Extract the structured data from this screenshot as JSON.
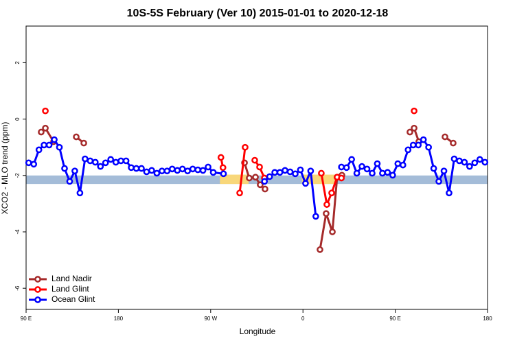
{
  "chart_data": {
    "type": "line",
    "title": "10S-5S February (Ver 10)   2015-01-01 to 2020-12-18",
    "x_label": "Longitude",
    "y_label": "XCO2 - MLO trend (ppm)",
    "xlim": [
      90,
      540
    ],
    "ylim": [
      -6.75,
      3.3
    ],
    "xticks": [
      {
        "value": 90,
        "label": "90 E"
      },
      {
        "value": 180,
        "label": "180"
      },
      {
        "value": 270,
        "label": "90 W"
      },
      {
        "value": 360,
        "label": "0"
      },
      {
        "value": 450,
        "label": "90 E"
      },
      {
        "value": 540,
        "label": "180"
      }
    ],
    "yticks": [
      2,
      0,
      -2,
      -4,
      -6
    ],
    "legend": "bottom-left",
    "band": {
      "ylim": [
        -2.3,
        -2.0
      ],
      "color": "#a4bcd8"
    },
    "highlights": [
      {
        "xlim": [
          279,
          307
        ],
        "ylim": [
          -2.3,
          -1.97
        ],
        "color": "#f8d77a"
      },
      {
        "xlim": [
          359,
          393
        ],
        "ylim": [
          -2.3,
          -1.97
        ],
        "color": "#f8d77a"
      }
    ],
    "series": [
      {
        "name": "Land Nadir",
        "color": "#a52a2a",
        "x": [
          104.7,
          108.8,
          116.8,
          null,
          138.9,
          146.3,
          null,
          303,
          307.6,
          313.7,
          318.3,
          323,
          null,
          376.6,
          382.6,
          388.7,
          393.3,
          398,
          null,
          464.3,
          468.4,
          473,
          null,
          498.5,
          506.5
        ],
        "values": [
          -0.46,
          -0.32,
          -0.8,
          null,
          -0.63,
          -0.85,
          null,
          -1.55,
          -2.09,
          -2.06,
          -2.33,
          -2.48,
          null,
          -4.63,
          -3.35,
          -4.0,
          -2.06,
          -1.99,
          null,
          -0.46,
          -0.32,
          -0.8,
          null,
          -0.63,
          -0.85
        ]
      },
      {
        "name": "Land Glint",
        "color": "#ff0000",
        "x": [
          108.8,
          null,
          280,
          282,
          null,
          298.3,
          303.6,
          null,
          313,
          317.7,
          322.4,
          null,
          377.9,
          383.3,
          388,
          393.3,
          397.5,
          null,
          468.4
        ],
        "values": [
          0.29,
          null,
          -1.36,
          -1.72,
          null,
          -2.62,
          -1.0,
          null,
          -1.46,
          -1.7,
          -2.09,
          null,
          -1.92,
          -3.03,
          -2.62,
          -2.06,
          -2.09,
          null,
          0.29
        ]
      },
      {
        "name": "Ocean Glint",
        "color": "#0000ff",
        "x": [
          92.5,
          97.5,
          102.5,
          107.5,
          112.5,
          117.5,
          122.5,
          127.5,
          132.5,
          137.5,
          142.5,
          147.5,
          152.5,
          157.5,
          162.5,
          167.5,
          172.5,
          177.5,
          182.5,
          187.5,
          192.5,
          197.5,
          202.5,
          207.5,
          212.5,
          217.5,
          222.5,
          227.5,
          232.5,
          237.5,
          242.5,
          247.5,
          252.5,
          257.5,
          262.5,
          267.5,
          272.5,
          282.5,
          null,
          322.5,
          327.5,
          332.5,
          337.5,
          342.5,
          347.5,
          352.5,
          357.5,
          362.5,
          367.5,
          372.5,
          null,
          397.5,
          402.5,
          407.5,
          412.5,
          417.5,
          422.5,
          427.5,
          432.5,
          437.5,
          442.5,
          447.5,
          452.5,
          457.5,
          462.5,
          467.5,
          472.5,
          477.5,
          482.5,
          487.5,
          492.5,
          497.5,
          502.5,
          507.5,
          512.5,
          517.5,
          522.5,
          527.5,
          532.5,
          537.5
        ],
        "values": [
          -1.55,
          -1.6,
          -1.09,
          -0.92,
          -0.92,
          -0.73,
          -1.0,
          -1.75,
          -2.21,
          -1.84,
          -2.62,
          -1.41,
          -1.48,
          -1.53,
          -1.68,
          -1.55,
          -1.43,
          -1.53,
          -1.48,
          -1.48,
          -1.72,
          -1.75,
          -1.75,
          -1.87,
          -1.82,
          -1.92,
          -1.84,
          -1.84,
          -1.77,
          -1.82,
          -1.77,
          -1.84,
          -1.77,
          -1.8,
          -1.82,
          -1.7,
          -1.89,
          -1.94,
          null,
          -2.21,
          -2.04,
          -1.89,
          -1.89,
          -1.82,
          -1.87,
          -1.94,
          -1.8,
          -2.28,
          -1.84,
          -3.45,
          null,
          -1.7,
          -1.72,
          -1.43,
          -1.92,
          -1.68,
          -1.77,
          -1.92,
          -1.58,
          -1.92,
          -1.89,
          -1.99,
          -1.58,
          -1.63,
          -1.09,
          -0.92,
          -0.92,
          -0.73,
          -1.0,
          -1.75,
          -2.21,
          -1.84,
          -2.62,
          -1.41,
          -1.48,
          -1.53,
          -1.68,
          -1.55,
          -1.43,
          -1.53
        ]
      }
    ]
  }
}
